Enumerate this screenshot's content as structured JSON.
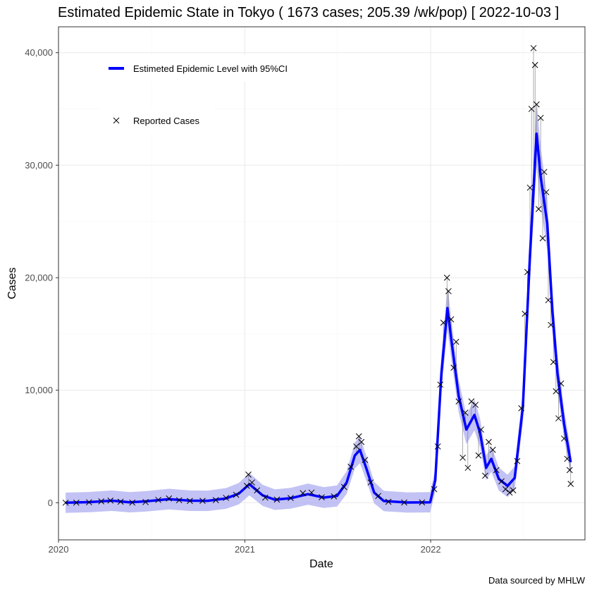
{
  "chart_data": {
    "type": "line",
    "title": "Estimated Epidemic State in Tokyo  ( 1673 cases; 205.39 /wk/pop) [ 2022-10-03 ]",
    "xlabel": "Date",
    "ylabel": "Cases",
    "caption": "Data sourced by MHLW",
    "xlim": [
      "2020-01-01",
      "2022-10-31"
    ],
    "ylim": [
      -3300,
      42300
    ],
    "x_ticks": [
      "2020-01-01",
      "2021-01-01",
      "2022-01-01"
    ],
    "x_tick_labels": [
      "2020",
      "2021",
      "2022"
    ],
    "y_ticks": [
      0,
      10000,
      20000,
      30000,
      40000
    ],
    "y_tick_labels": [
      "0",
      "10,000",
      "20,000",
      "30,000",
      "40,000"
    ],
    "grid": true,
    "legend": {
      "placement": "top-left",
      "entries": [
        {
          "label": "Estimeted Epidemic Level with 95%CI",
          "color": "#0000ff",
          "symbol": "line"
        },
        {
          "label": "Reported Cases",
          "color": "#000000",
          "symbol": "cross"
        }
      ]
    },
    "series": [
      {
        "name": "Estimeted Epidemic Level with 95%CI",
        "color": "#0000ff",
        "ci_color": "#b3b3f2",
        "points": [
          {
            "x": "2020-01-15",
            "y": 0
          },
          {
            "x": "2020-03-01",
            "y": 50
          },
          {
            "x": "2020-04-15",
            "y": 180
          },
          {
            "x": "2020-05-20",
            "y": 40
          },
          {
            "x": "2020-06-20",
            "y": 120
          },
          {
            "x": "2020-08-05",
            "y": 320
          },
          {
            "x": "2020-09-15",
            "y": 180
          },
          {
            "x": "2020-10-20",
            "y": 170
          },
          {
            "x": "2020-11-25",
            "y": 380
          },
          {
            "x": "2020-12-20",
            "y": 800
          },
          {
            "x": "2021-01-10",
            "y": 1650
          },
          {
            "x": "2021-02-05",
            "y": 650
          },
          {
            "x": "2021-03-01",
            "y": 270
          },
          {
            "x": "2021-04-01",
            "y": 400
          },
          {
            "x": "2021-05-05",
            "y": 760
          },
          {
            "x": "2021-06-05",
            "y": 460
          },
          {
            "x": "2021-07-01",
            "y": 600
          },
          {
            "x": "2021-07-20",
            "y": 1800
          },
          {
            "x": "2021-08-05",
            "y": 4200
          },
          {
            "x": "2021-08-15",
            "y": 4700
          },
          {
            "x": "2021-08-28",
            "y": 3000
          },
          {
            "x": "2021-09-12",
            "y": 900
          },
          {
            "x": "2021-10-01",
            "y": 150
          },
          {
            "x": "2021-11-15",
            "y": 20
          },
          {
            "x": "2021-12-31",
            "y": 40
          },
          {
            "x": "2022-01-10",
            "y": 2000
          },
          {
            "x": "2022-01-22",
            "y": 11500
          },
          {
            "x": "2022-02-03",
            "y": 17300
          },
          {
            "x": "2022-02-12",
            "y": 14000
          },
          {
            "x": "2022-02-25",
            "y": 9500
          },
          {
            "x": "2022-03-12",
            "y": 6500
          },
          {
            "x": "2022-03-28",
            "y": 7800
          },
          {
            "x": "2022-04-08",
            "y": 6200
          },
          {
            "x": "2022-04-20",
            "y": 3100
          },
          {
            "x": "2022-04-30",
            "y": 3900
          },
          {
            "x": "2022-05-15",
            "y": 2100
          },
          {
            "x": "2022-06-01",
            "y": 1500
          },
          {
            "x": "2022-06-15",
            "y": 2200
          },
          {
            "x": "2022-07-01",
            "y": 8500
          },
          {
            "x": "2022-07-15",
            "y": 22000
          },
          {
            "x": "2022-07-28",
            "y": 32800
          },
          {
            "x": "2022-08-05",
            "y": 29000
          },
          {
            "x": "2022-08-18",
            "y": 24800
          },
          {
            "x": "2022-08-28",
            "y": 17000
          },
          {
            "x": "2022-09-07",
            "y": 11500
          },
          {
            "x": "2022-09-20",
            "y": 7000
          },
          {
            "x": "2022-10-03",
            "y": 3600
          }
        ]
      },
      {
        "name": "Reported Cases",
        "color": "#000000",
        "symbol": "cross",
        "points": [
          {
            "x": "2020-01-15",
            "y": 0
          },
          {
            "x": "2020-02-05",
            "y": 5
          },
          {
            "x": "2020-03-01",
            "y": 40
          },
          {
            "x": "2020-03-25",
            "y": 120
          },
          {
            "x": "2020-04-12",
            "y": 190
          },
          {
            "x": "2020-05-02",
            "y": 90
          },
          {
            "x": "2020-05-25",
            "y": 10
          },
          {
            "x": "2020-06-20",
            "y": 60
          },
          {
            "x": "2020-07-15",
            "y": 250
          },
          {
            "x": "2020-08-05",
            "y": 380
          },
          {
            "x": "2020-08-25",
            "y": 220
          },
          {
            "x": "2020-09-15",
            "y": 160
          },
          {
            "x": "2020-10-10",
            "y": 170
          },
          {
            "x": "2020-11-05",
            "y": 230
          },
          {
            "x": "2020-11-25",
            "y": 430
          },
          {
            "x": "2020-12-15",
            "y": 700
          },
          {
            "x": "2021-01-05",
            "y": 1500
          },
          {
            "x": "2021-01-08",
            "y": 2500
          },
          {
            "x": "2021-01-15",
            "y": 1800
          },
          {
            "x": "2021-01-25",
            "y": 1100
          },
          {
            "x": "2021-02-10",
            "y": 450
          },
          {
            "x": "2021-03-05",
            "y": 280
          },
          {
            "x": "2021-04-01",
            "y": 420
          },
          {
            "x": "2021-04-25",
            "y": 850
          },
          {
            "x": "2021-05-12",
            "y": 900
          },
          {
            "x": "2021-06-01",
            "y": 480
          },
          {
            "x": "2021-06-25",
            "y": 560
          },
          {
            "x": "2021-07-15",
            "y": 1400
          },
          {
            "x": "2021-07-28",
            "y": 3200
          },
          {
            "x": "2021-08-08",
            "y": 5000
          },
          {
            "x": "2021-08-13",
            "y": 5900
          },
          {
            "x": "2021-08-18",
            "y": 5400
          },
          {
            "x": "2021-08-25",
            "y": 3800
          },
          {
            "x": "2021-09-05",
            "y": 1800
          },
          {
            "x": "2021-09-20",
            "y": 600
          },
          {
            "x": "2021-10-10",
            "y": 80
          },
          {
            "x": "2021-11-10",
            "y": 20
          },
          {
            "x": "2021-12-15",
            "y": 30
          },
          {
            "x": "2022-01-08",
            "y": 1200
          },
          {
            "x": "2022-01-15",
            "y": 5000
          },
          {
            "x": "2022-01-20",
            "y": 10500
          },
          {
            "x": "2022-01-26",
            "y": 16000
          },
          {
            "x": "2022-02-02",
            "y": 20000
          },
          {
            "x": "2022-02-05",
            "y": 18800
          },
          {
            "x": "2022-02-10",
            "y": 16300
          },
          {
            "x": "2022-02-15",
            "y": 12000
          },
          {
            "x": "2022-02-20",
            "y": 14300
          },
          {
            "x": "2022-02-25",
            "y": 9000
          },
          {
            "x": "2022-03-05",
            "y": 4000
          },
          {
            "x": "2022-03-10",
            "y": 8000
          },
          {
            "x": "2022-03-15",
            "y": 3100
          },
          {
            "x": "2022-03-22",
            "y": 9000
          },
          {
            "x": "2022-03-30",
            "y": 8700
          },
          {
            "x": "2022-04-05",
            "y": 4200
          },
          {
            "x": "2022-04-10",
            "y": 6500
          },
          {
            "x": "2022-04-18",
            "y": 2400
          },
          {
            "x": "2022-04-25",
            "y": 5400
          },
          {
            "x": "2022-05-03",
            "y": 4700
          },
          {
            "x": "2022-05-10",
            "y": 2900
          },
          {
            "x": "2022-05-20",
            "y": 1900
          },
          {
            "x": "2022-05-28",
            "y": 1200
          },
          {
            "x": "2022-06-05",
            "y": 900
          },
          {
            "x": "2022-06-12",
            "y": 1100
          },
          {
            "x": "2022-06-20",
            "y": 3700
          },
          {
            "x": "2022-06-28",
            "y": 8400
          },
          {
            "x": "2022-07-05",
            "y": 16800
          },
          {
            "x": "2022-07-10",
            "y": 20500
          },
          {
            "x": "2022-07-15",
            "y": 28000
          },
          {
            "x": "2022-07-18",
            "y": 35000
          },
          {
            "x": "2022-07-22",
            "y": 40400
          },
          {
            "x": "2022-07-25",
            "y": 38900
          },
          {
            "x": "2022-07-28",
            "y": 35400
          },
          {
            "x": "2022-08-01",
            "y": 26100
          },
          {
            "x": "2022-08-05",
            "y": 34200
          },
          {
            "x": "2022-08-09",
            "y": 23500
          },
          {
            "x": "2022-08-12",
            "y": 29400
          },
          {
            "x": "2022-08-16",
            "y": 27600
          },
          {
            "x": "2022-08-20",
            "y": 18000
          },
          {
            "x": "2022-08-25",
            "y": 15800
          },
          {
            "x": "2022-08-30",
            "y": 12500
          },
          {
            "x": "2022-09-04",
            "y": 9900
          },
          {
            "x": "2022-09-09",
            "y": 7500
          },
          {
            "x": "2022-09-14",
            "y": 10600
          },
          {
            "x": "2022-09-20",
            "y": 5700
          },
          {
            "x": "2022-09-26",
            "y": 3900
          },
          {
            "x": "2022-10-01",
            "y": 2900
          },
          {
            "x": "2022-10-03",
            "y": 1673
          }
        ]
      }
    ]
  }
}
